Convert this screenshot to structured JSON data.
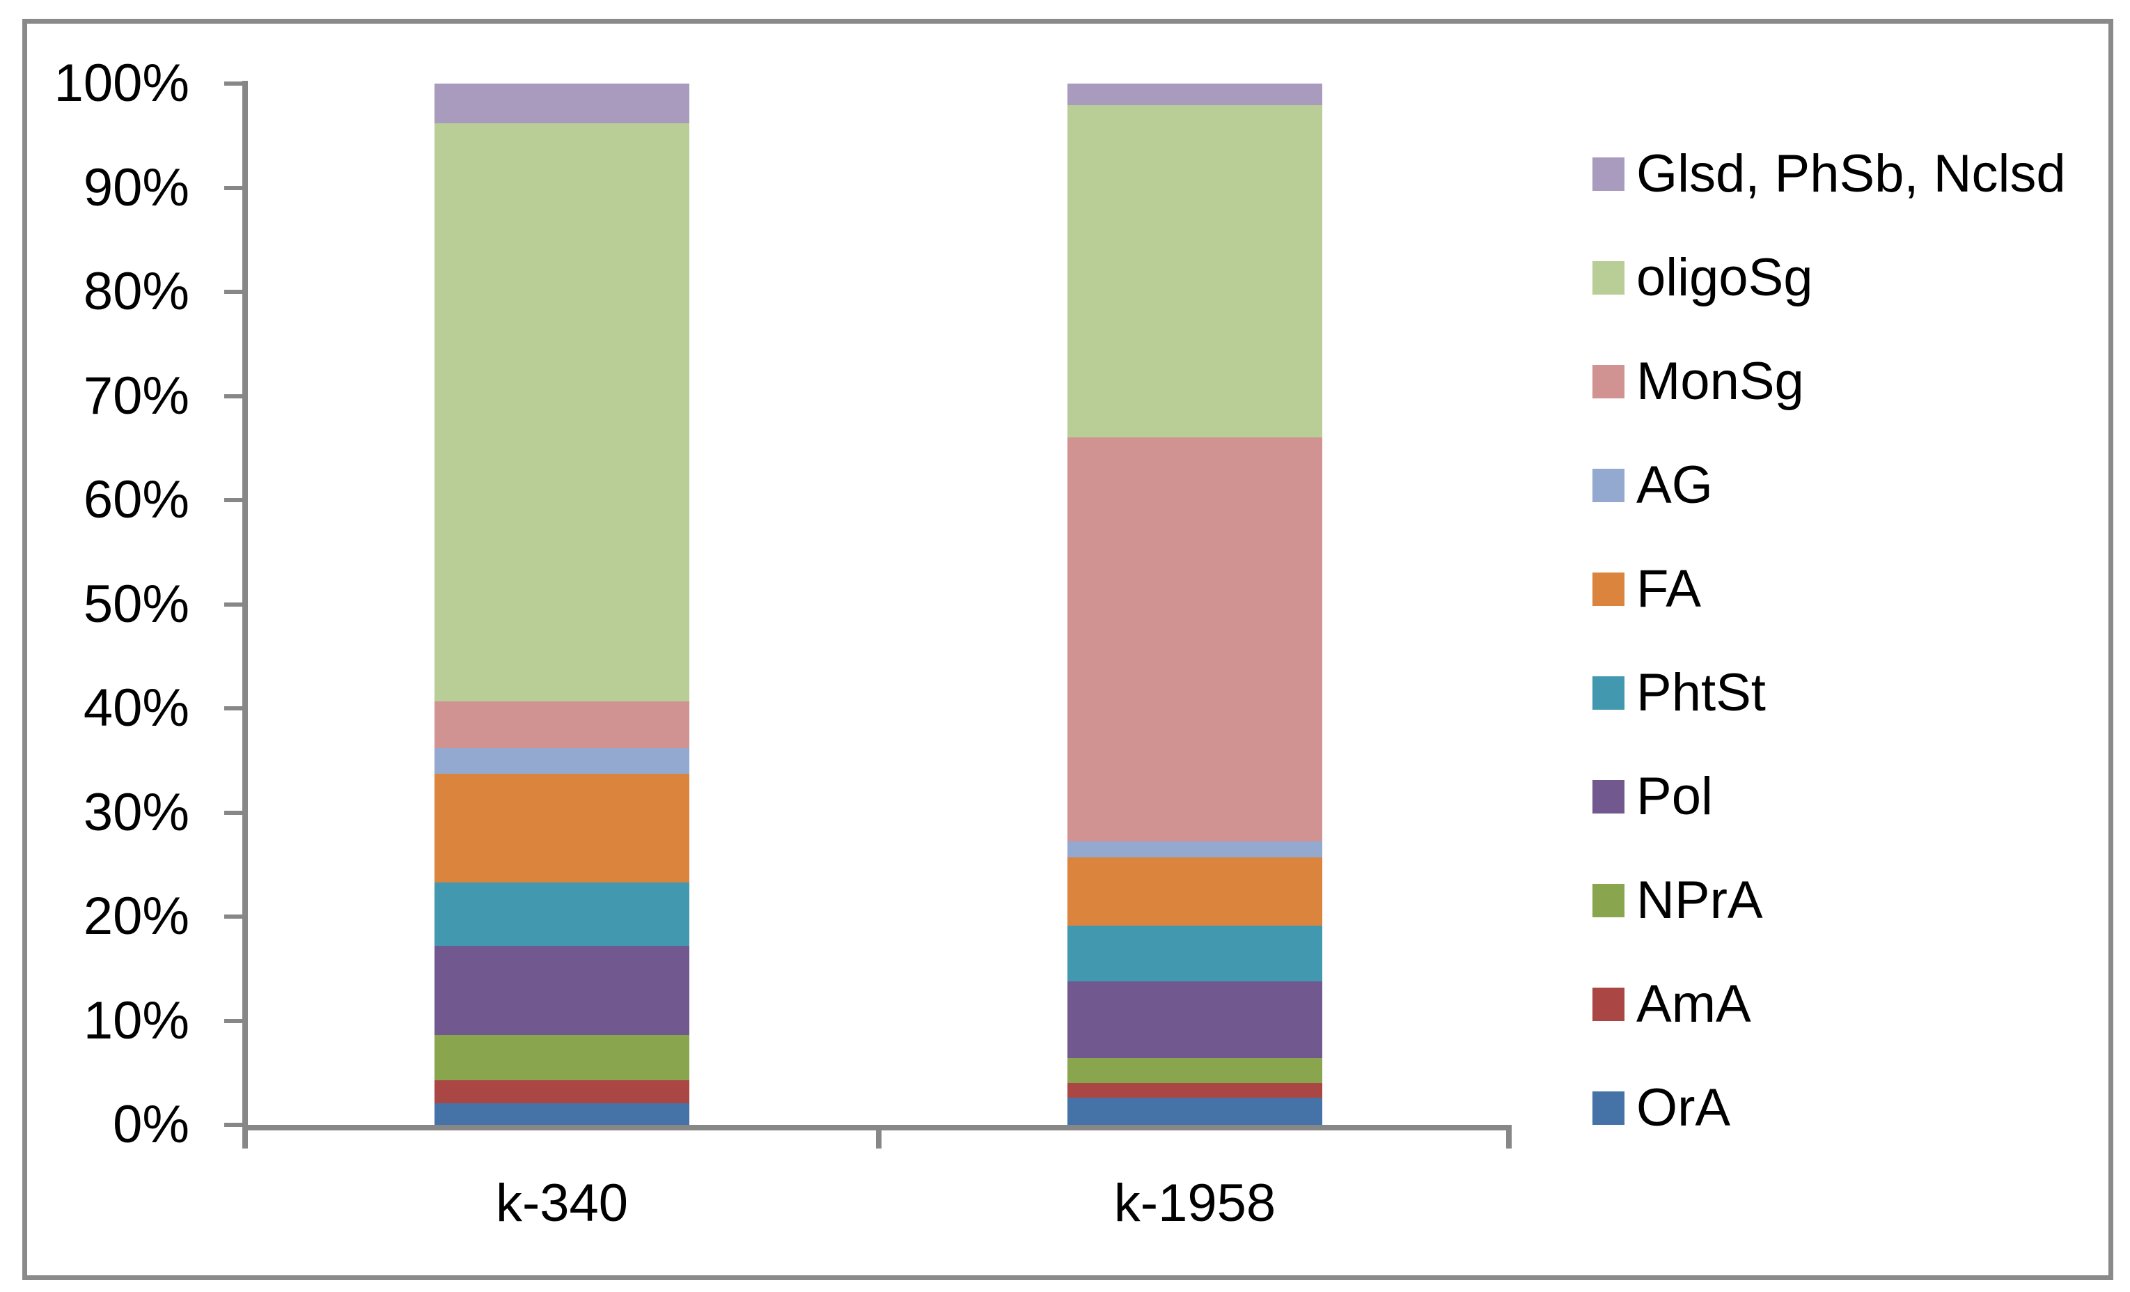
{
  "chart_data": {
    "type": "bar",
    "variant": "100%-stacked-column",
    "title": "",
    "categories": [
      "k-340",
      "k-1958"
    ],
    "series": [
      {
        "name": "OrA",
        "color": "#4572A7",
        "values": [
          2.1,
          2.6
        ]
      },
      {
        "name": "AmA",
        "color": "#AA4643",
        "values": [
          2.2,
          1.4
        ]
      },
      {
        "name": "NPrA",
        "color": "#89A54E",
        "values": [
          4.3,
          2.4
        ]
      },
      {
        "name": "Pol",
        "color": "#71588F",
        "values": [
          8.6,
          7.4
        ]
      },
      {
        "name": "PhtSt",
        "color": "#4198AF",
        "values": [
          6.1,
          5.3
        ]
      },
      {
        "name": "FA",
        "color": "#DB843D",
        "values": [
          10.4,
          6.6
        ]
      },
      {
        "name": "AG",
        "color": "#93A9CF",
        "values": [
          2.5,
          1.5
        ]
      },
      {
        "name": "MonSg",
        "color": "#D19392",
        "values": [
          4.5,
          38.8
        ]
      },
      {
        "name": "oligoSg",
        "color": "#B9CD96",
        "values": [
          55.5,
          31.9
        ]
      },
      {
        "name": "Glsd, PhSb, Nclsd",
        "color": "#A99BBD",
        "values": [
          3.8,
          2.1
        ]
      }
    ],
    "xlabel": "",
    "ylabel": "",
    "y_axis": {
      "min": 0,
      "max": 100,
      "unit": "%",
      "tick_step": 10,
      "tick_labels": [
        "0%",
        "10%",
        "20%",
        "30%",
        "40%",
        "50%",
        "60%",
        "70%",
        "80%",
        "90%",
        "100%"
      ]
    },
    "grid": "off",
    "legend_position": "right",
    "legend_order_top_to_bottom": [
      "Glsd, PhSb, Nclsd",
      "oligoSg",
      "MonSg",
      "AG",
      "FA",
      "PhtSt",
      "Pol",
      "NPrA",
      "AmA",
      "OrA"
    ],
    "axis_color": "#878787",
    "frame_color": "#8A8A8A",
    "text_color": "#000000",
    "background_color": "#FFFFFF"
  }
}
